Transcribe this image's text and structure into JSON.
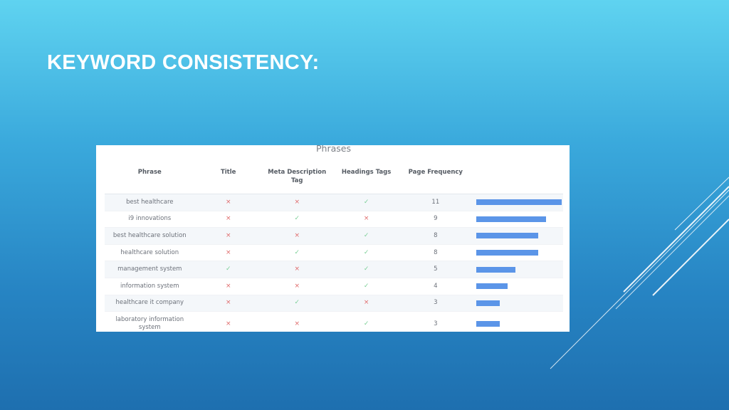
{
  "slide": {
    "title": "KEYWORD CONSISTENCY:"
  },
  "panel": {
    "title": "Phrases",
    "columns": [
      "Phrase",
      "Title",
      "Meta Description Tag",
      "Headings Tags",
      "Page Frequency",
      ""
    ],
    "rows": [
      {
        "phrase": "best healthcare",
        "title": "cross",
        "meta": "cross",
        "headings": "check",
        "frequency": 11
      },
      {
        "phrase": "i9 innovations",
        "title": "cross",
        "meta": "check",
        "headings": "cross",
        "frequency": 9
      },
      {
        "phrase": "best healthcare solution",
        "title": "cross",
        "meta": "cross",
        "headings": "check",
        "frequency": 8
      },
      {
        "phrase": "healthcare solution",
        "title": "cross",
        "meta": "check",
        "headings": "check",
        "frequency": 8
      },
      {
        "phrase": "management system",
        "title": "check",
        "meta": "cross",
        "headings": "check",
        "frequency": 5
      },
      {
        "phrase": "information system",
        "title": "cross",
        "meta": "cross",
        "headings": "check",
        "frequency": 4
      },
      {
        "phrase": "healthcare it company",
        "title": "cross",
        "meta": "check",
        "headings": "cross",
        "frequency": 3
      },
      {
        "phrase": "laboratory information system",
        "title": "cross",
        "meta": "cross",
        "headings": "check",
        "frequency": 3
      }
    ],
    "max_frequency": 11,
    "bar_color": "#5b95e8",
    "cross_color": "#e06a6a",
    "check_color": "#7ccf97"
  }
}
